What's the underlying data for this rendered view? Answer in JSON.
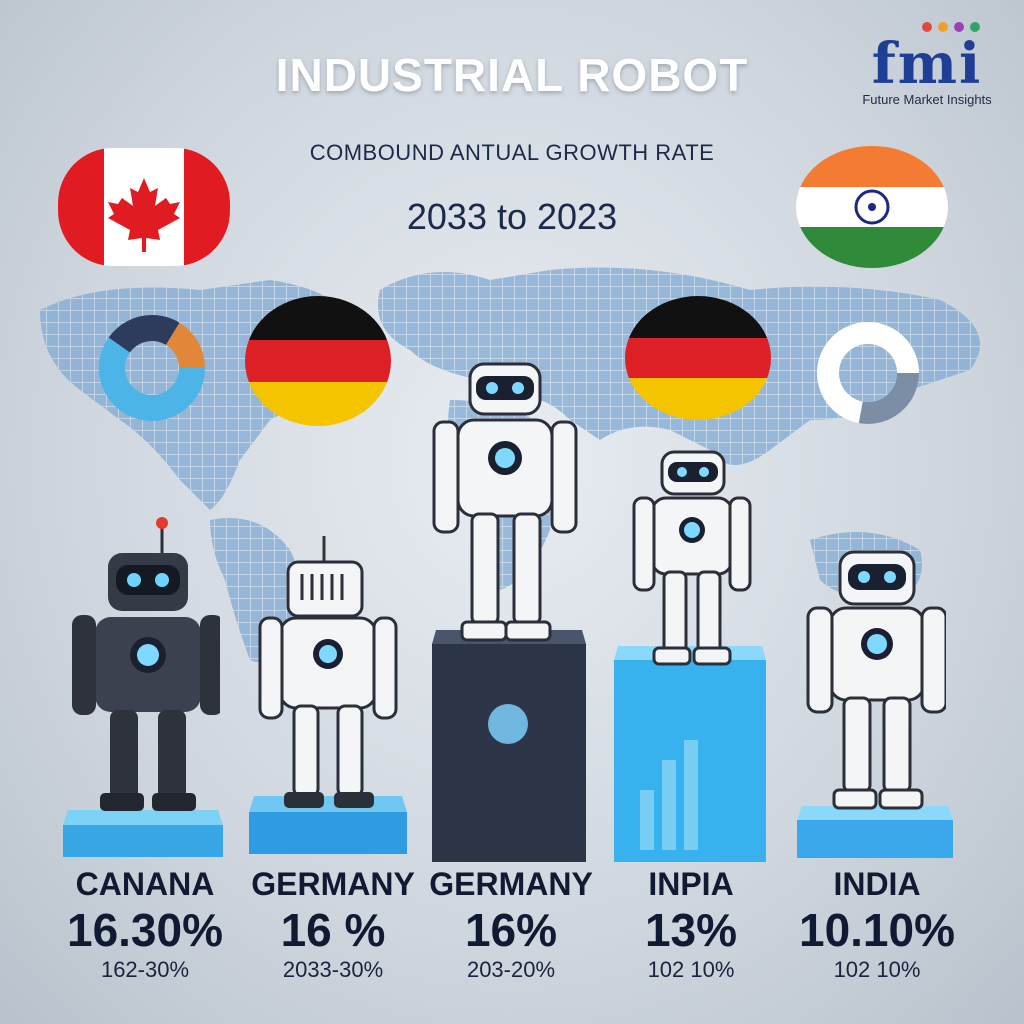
{
  "header": {
    "title": "INDUSTRIAL ROBOT",
    "subtitle": "COMBOUND ANTUAL GROWTH RATE",
    "period": "2033 to 2023"
  },
  "logo": {
    "mark": "fmi",
    "name": "Future Market Insights"
  },
  "colors": {
    "title": "#ffffff",
    "text_dark": "#111a33",
    "accent_blue": "#3aa8ea",
    "pedestal_dark": "#2c3447",
    "logo_blue": "#1f3f97"
  },
  "columns": [
    {
      "country": "CANANA",
      "percent": "16.30%",
      "range": "162-30%"
    },
    {
      "country": "GERMANY",
      "percent": "16 %",
      "range": "2033-30%"
    },
    {
      "country": "GERMANY",
      "percent": "16%",
      "range": "203-20%"
    },
    {
      "country": "INPIA",
      "percent": "13%",
      "range": "102 10%"
    },
    {
      "country": "INDIA",
      "percent": "10.10%",
      "range": "102 10%"
    }
  ],
  "icons": [
    "canada-flag-icon",
    "india-flag-icon",
    "germany-flag-icon",
    "donut-chart-icon",
    "bar-chart-icon",
    "world-map",
    "robot"
  ]
}
